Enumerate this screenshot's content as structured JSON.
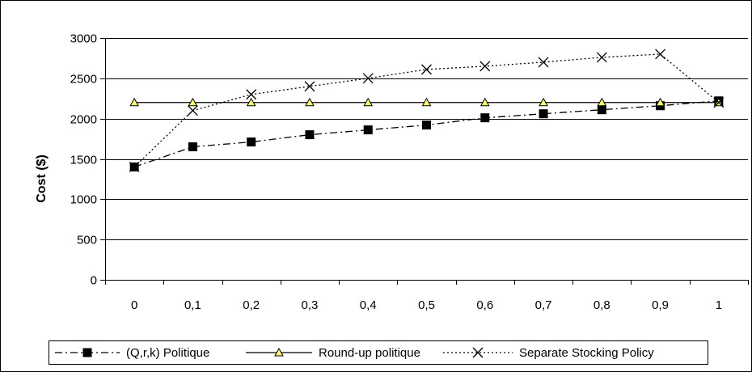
{
  "chart_data": {
    "type": "line",
    "title": "",
    "xlabel": "",
    "ylabel": "Cost ($)",
    "x": [
      "0",
      "0,1",
      "0,2",
      "0,3",
      "0,4",
      "0,5",
      "0,6",
      "0,7",
      "0,8",
      "0,9",
      "1"
    ],
    "ylim": [
      0,
      3000
    ],
    "yticks": [
      "0",
      "500",
      "1000",
      "1500",
      "2000",
      "2500",
      "3000"
    ],
    "grid": "horizontal",
    "legend_position": "bottom",
    "series": [
      {
        "name": "(Q,r,k) Politique",
        "values": [
          1400,
          1650,
          1710,
          1800,
          1860,
          1920,
          2010,
          2060,
          2110,
          2160,
          2220
        ],
        "line_style": "dash-dot",
        "marker": "square",
        "color": "#000000"
      },
      {
        "name": "Round-up politique",
        "values": [
          2200,
          2200,
          2200,
          2200,
          2200,
          2200,
          2200,
          2200,
          2200,
          2200,
          2200
        ],
        "line_style": "solid",
        "marker": "triangle",
        "color": "#000000",
        "marker_fill": "#ffff66"
      },
      {
        "name": "Separate Stocking Policy",
        "values": [
          1400,
          2100,
          2300,
          2400,
          2500,
          2610,
          2650,
          2700,
          2760,
          2800,
          2200
        ],
        "line_style": "dotted",
        "marker": "x",
        "color": "#000000"
      }
    ]
  }
}
